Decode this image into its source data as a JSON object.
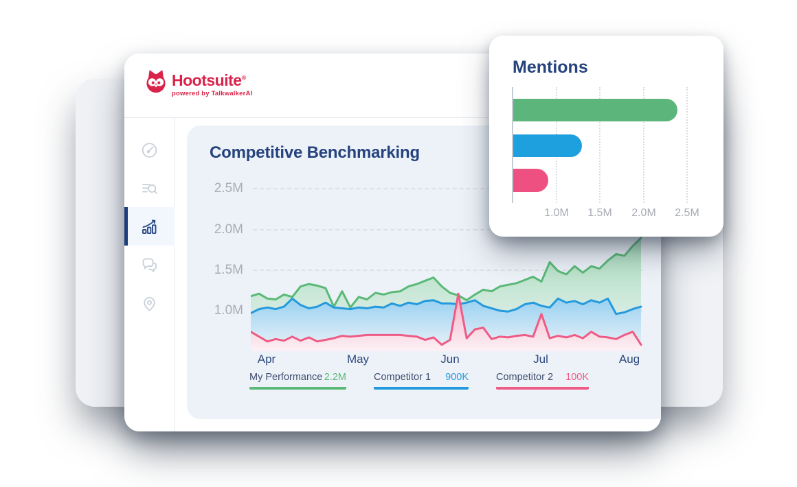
{
  "brand": {
    "name": "Hootsuite",
    "registered": "®",
    "tagline": "powered by TalkwalkerAI",
    "color": "#d9234a"
  },
  "sidebar": {
    "items": [
      {
        "id": "dashboard",
        "icon": "gauge-icon",
        "active": false
      },
      {
        "id": "search",
        "icon": "search-list-icon",
        "active": false
      },
      {
        "id": "analytics",
        "icon": "analytics-trend-icon",
        "active": true
      },
      {
        "id": "conversations",
        "icon": "chat-bubbles-icon",
        "active": false
      },
      {
        "id": "locations",
        "icon": "location-pin-icon",
        "active": false
      }
    ]
  },
  "chart_data": [
    {
      "type": "area",
      "title": "Competitive Benchmarking",
      "grid": "dashed horizontal",
      "legend_position": "bottom",
      "x_axis": {
        "tick_labels": [
          "Apr",
          "May",
          "Jun",
          "Jul",
          "Aug"
        ]
      },
      "y_axis": {
        "tick_labels": [
          "2.5M",
          "2.0M",
          "1.5M",
          "1.0M"
        ],
        "tick_values_m": [
          2.5,
          2.0,
          1.5,
          1.0
        ]
      },
      "unit": "mentions (millions)",
      "series": [
        {
          "name": "My Performance",
          "legend_value": "2.2M",
          "color": "#5bb977",
          "values_m": [
            1.18,
            1.21,
            1.15,
            1.14,
            1.2,
            1.17,
            1.3,
            1.33,
            1.31,
            1.28,
            1.05,
            1.24,
            1.04,
            1.17,
            1.14,
            1.22,
            1.2,
            1.23,
            1.24,
            1.3,
            1.33,
            1.37,
            1.41,
            1.3,
            1.22,
            1.19,
            1.13,
            1.2,
            1.26,
            1.24,
            1.3,
            1.32,
            1.34,
            1.38,
            1.42,
            1.36,
            1.6,
            1.49,
            1.45,
            1.55,
            1.47,
            1.55,
            1.52,
            1.62,
            1.7,
            1.68,
            1.8,
            1.9
          ]
        },
        {
          "name": "Competitor 1",
          "legend_value": "900K",
          "color": "#249add",
          "values_m": [
            0.97,
            1.02,
            1.04,
            1.02,
            1.05,
            1.15,
            1.07,
            1.03,
            1.05,
            1.1,
            1.04,
            1.03,
            1.02,
            1.04,
            1.03,
            1.05,
            1.04,
            1.09,
            1.06,
            1.1,
            1.08,
            1.12,
            1.13,
            1.09,
            1.09,
            1.08,
            1.1,
            1.13,
            1.06,
            1.03,
            1.0,
            0.99,
            1.02,
            1.08,
            1.1,
            1.06,
            1.04,
            1.15,
            1.1,
            1.12,
            1.08,
            1.13,
            1.1,
            1.15,
            0.96,
            0.98,
            1.02,
            1.05
          ]
        },
        {
          "name": "Competitor 2",
          "legend_value": "100K",
          "color": "#ee5b85",
          "values_m": [
            0.74,
            0.68,
            0.62,
            0.65,
            0.63,
            0.68,
            0.63,
            0.67,
            0.62,
            0.64,
            0.66,
            0.69,
            0.68,
            0.69,
            0.7,
            0.7,
            0.7,
            0.7,
            0.7,
            0.69,
            0.68,
            0.64,
            0.67,
            0.58,
            0.64,
            1.21,
            0.66,
            0.77,
            0.79,
            0.65,
            0.68,
            0.67,
            0.69,
            0.7,
            0.68,
            0.96,
            0.66,
            0.69,
            0.67,
            0.7,
            0.66,
            0.74,
            0.68,
            0.67,
            0.65,
            0.7,
            0.74,
            0.58
          ]
        }
      ]
    },
    {
      "type": "bar",
      "title": "Mentions",
      "orientation": "horizontal",
      "grid": "dotted vertical",
      "x_axis": {
        "tick_labels": [
          "1.0M",
          "1.5M",
          "2.0M",
          "2.5M"
        ],
        "tick_values_m": [
          1.0,
          1.5,
          2.0,
          2.5
        ],
        "axis_start_m": 0.5
      },
      "bars": [
        {
          "name": "My Performance",
          "value_m": 2.38,
          "color": "#5cb57b"
        },
        {
          "name": "Competitor 1",
          "value_m": 1.29,
          "color": "#1fa0de"
        },
        {
          "name": "Competitor 2",
          "value_m": 0.9,
          "color": "#ee5181"
        }
      ]
    }
  ]
}
